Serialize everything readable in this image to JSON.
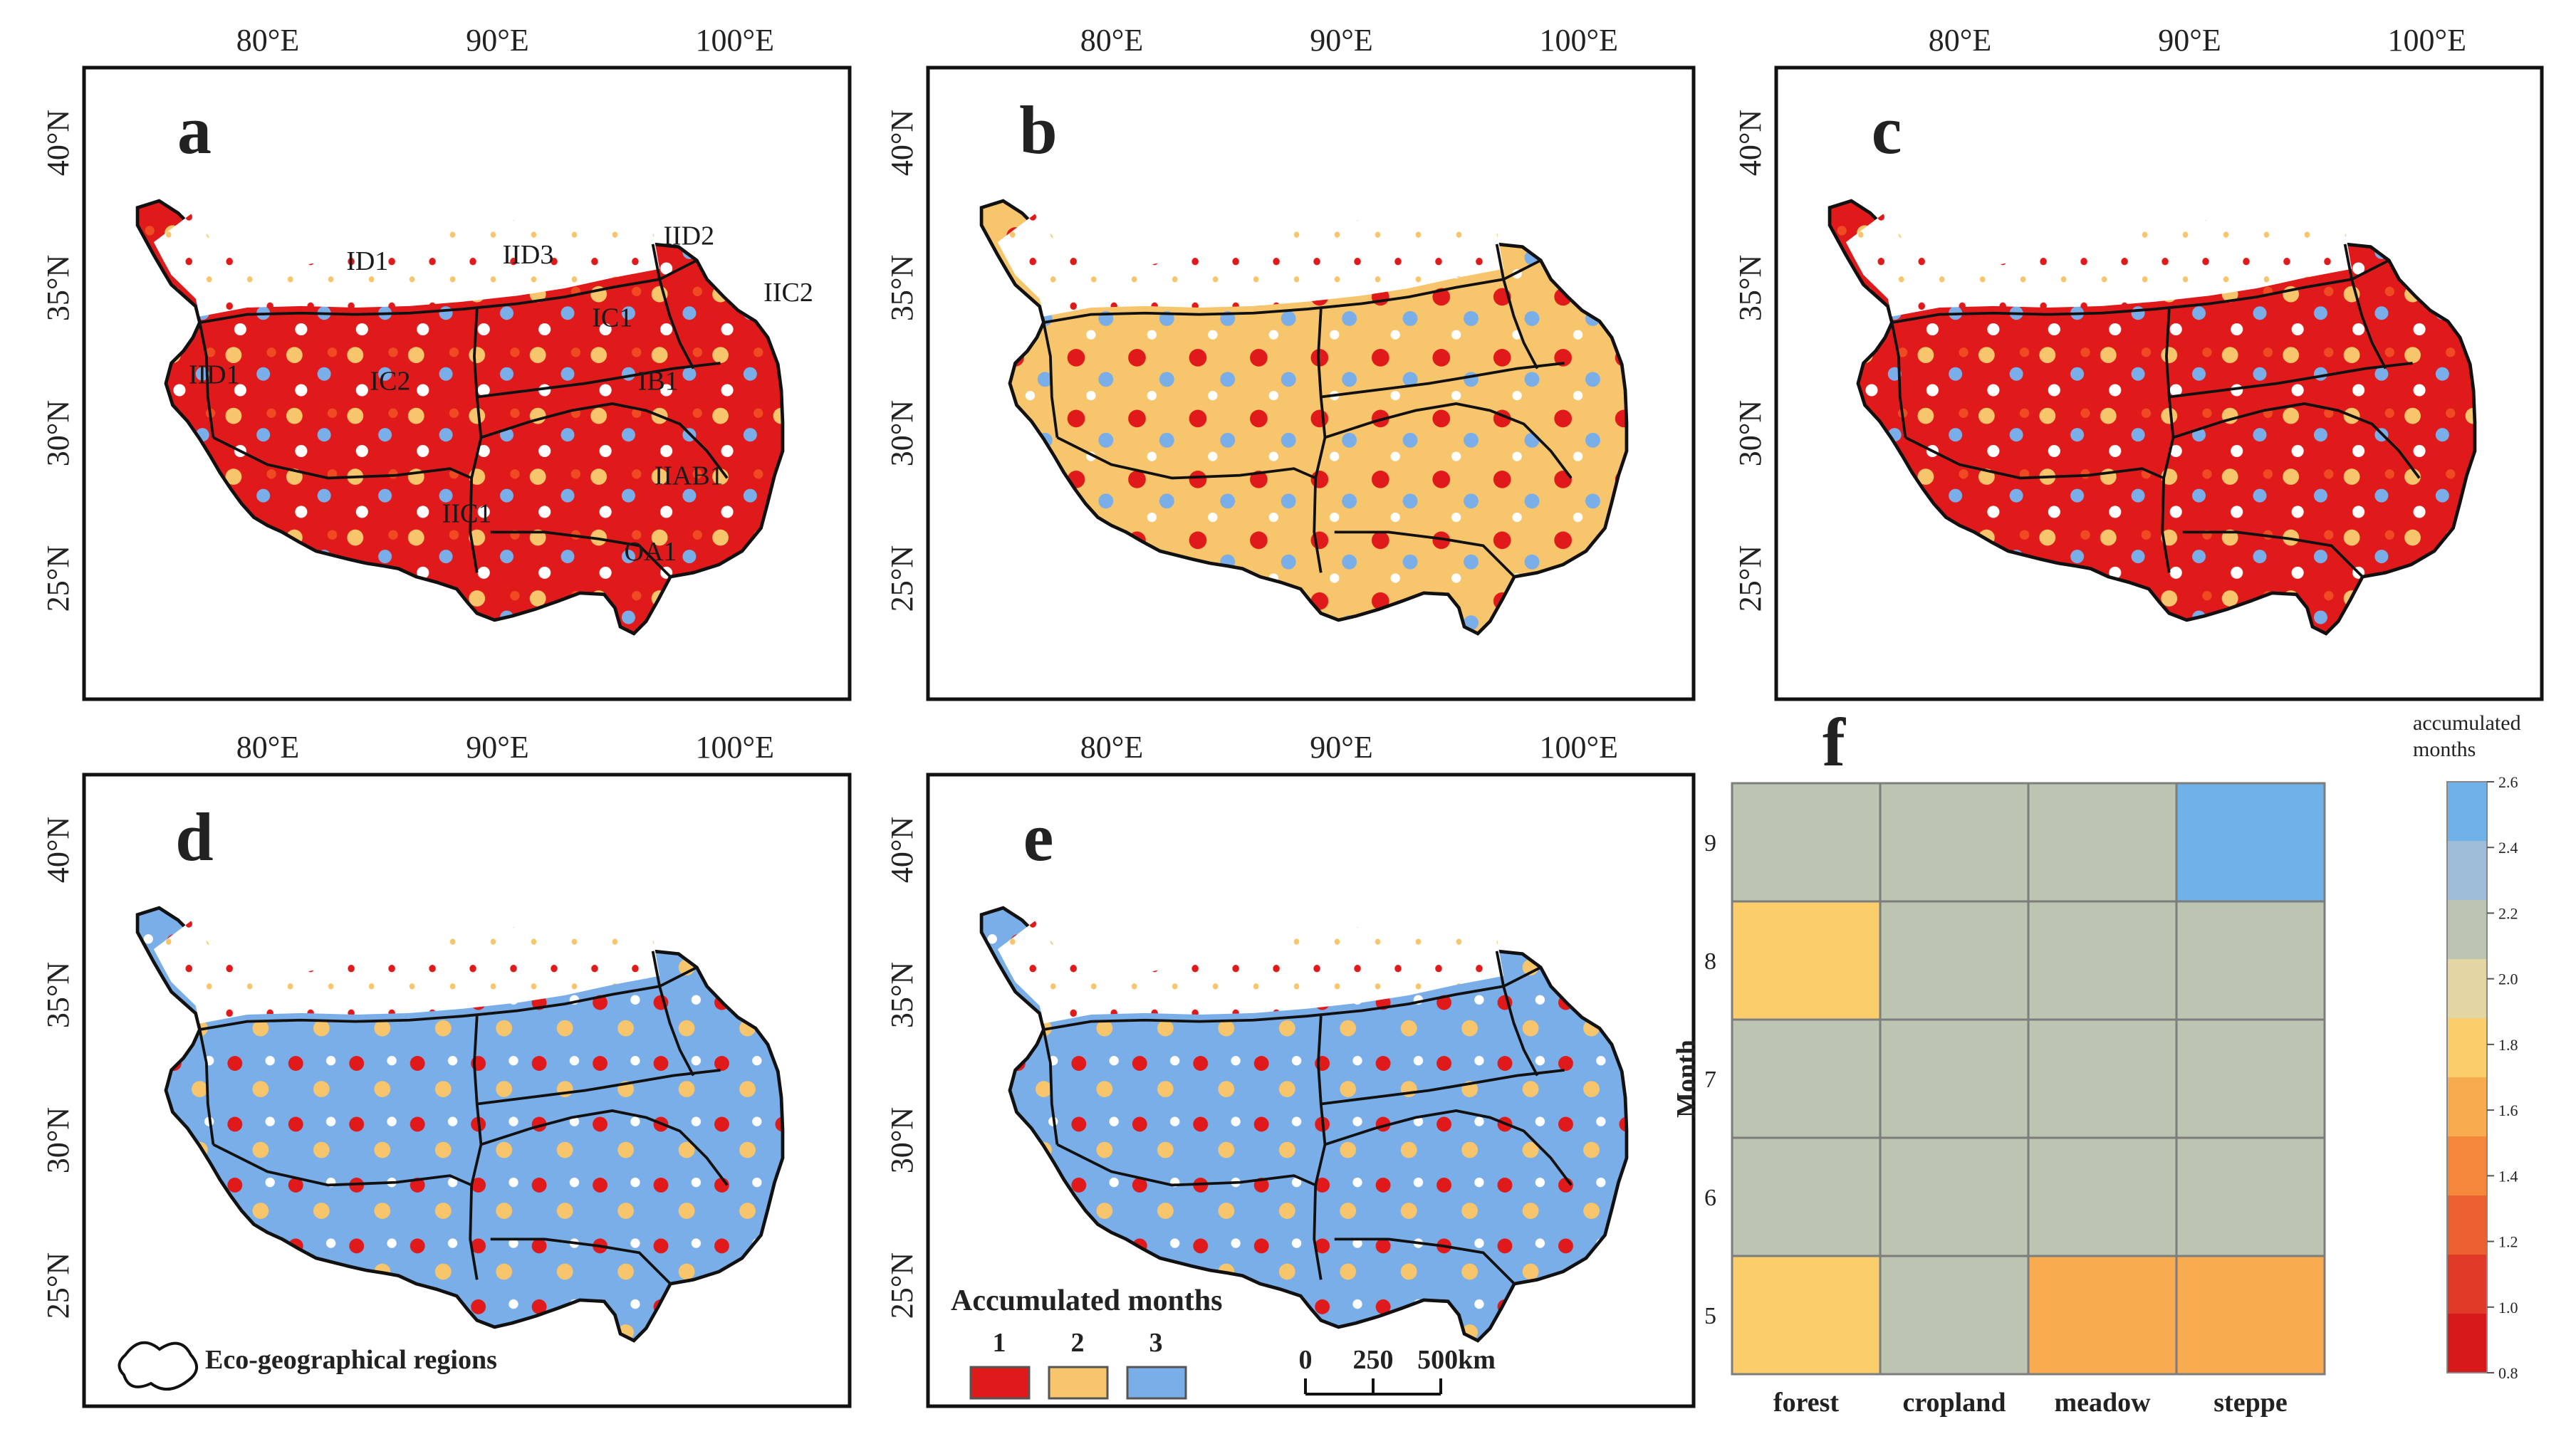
{
  "panels": [
    {
      "letter": "a",
      "kind": "regions"
    },
    {
      "letter": "b",
      "kind": "map"
    },
    {
      "letter": "c",
      "kind": "map"
    },
    {
      "letter": "d",
      "kind": "map"
    },
    {
      "letter": "e",
      "kind": "map"
    }
  ],
  "axes": {
    "lon_labels": [
      "80°E",
      "90°E",
      "100°E"
    ],
    "lat_labels": [
      "40°N",
      "35°N",
      "30°N",
      "25°N"
    ]
  },
  "regions": [
    "ID1",
    "IID3",
    "IID2",
    "IIC2",
    "IC1",
    "IID1",
    "IC2",
    "IB1",
    "IIAB1",
    "IIC1",
    "OA1"
  ],
  "colors": {
    "c1": "#e01a1a",
    "c2": "#f7c56b",
    "c3": "#7aaee8",
    "c1b": "#f04a22",
    "c2b": "#eba64a"
  },
  "legend": {
    "region_label": "Eco-geographical regions",
    "title": "Accumulated months",
    "items": [
      {
        "label": "1",
        "color": "#e01a1a"
      },
      {
        "label": "2",
        "color": "#f7c56b"
      },
      {
        "label": "3",
        "color": "#7aaee8"
      }
    ],
    "scale_ticks": [
      "0",
      "250",
      "500km"
    ]
  },
  "chart_data": {
    "type": "heatmap",
    "panel": "f",
    "xlabel": "",
    "ylabel": "Month",
    "x": [
      "forest",
      "cropland",
      "meadow",
      "steppe"
    ],
    "y": [
      5,
      6,
      7,
      8,
      9
    ],
    "values": [
      [
        1.9,
        2.1,
        1.7,
        1.7
      ],
      [
        2.1,
        2.1,
        2.3,
        2.1
      ],
      [
        2.1,
        2.1,
        2.3,
        2.3
      ],
      [
        1.9,
        2.1,
        2.3,
        2.3
      ],
      [
        2.1,
        2.3,
        2.3,
        2.5
      ]
    ],
    "colorbar": {
      "title": "accumulated months",
      "min": 0.8,
      "max": 2.6,
      "ticks": [
        "0.8",
        "1.0",
        "1.2",
        "1.4",
        "1.6",
        "1.8",
        "2.0",
        "2.2",
        "2.4",
        "2.6"
      ],
      "colors": [
        "#d7191c",
        "#e23a28",
        "#ec5f2e",
        "#f4873c",
        "#f9ab50",
        "#fcce6b",
        "#e4d6a2",
        "#bcc5b2",
        "#9fbdd8",
        "#6fb2ea"
      ]
    }
  }
}
